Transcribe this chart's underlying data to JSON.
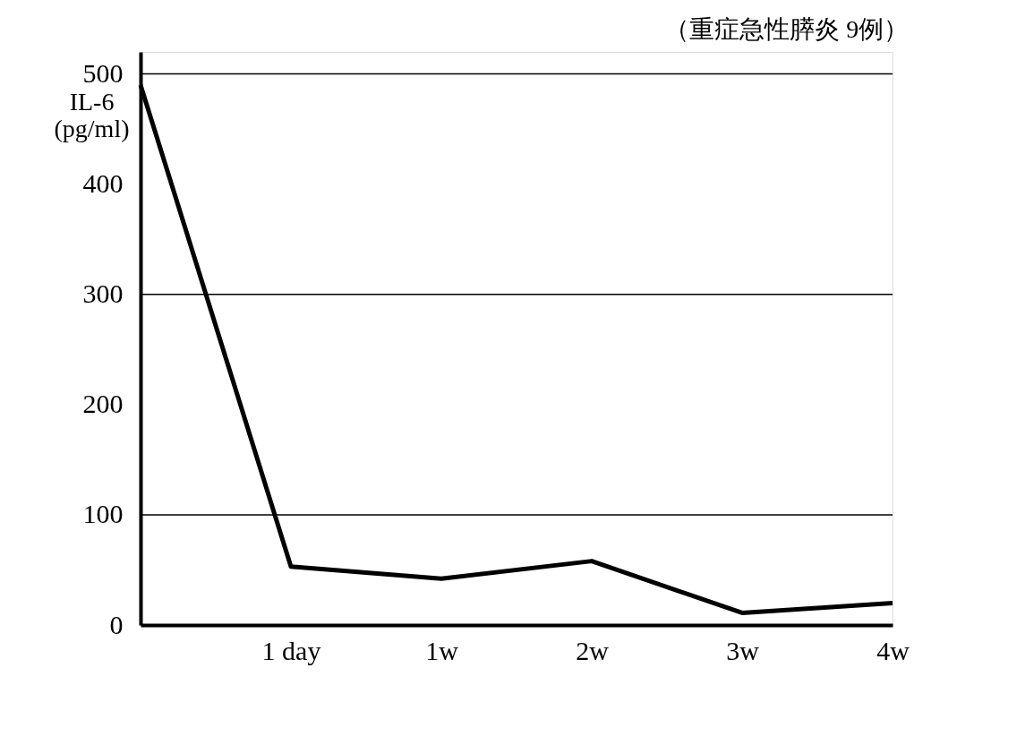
{
  "chart_data": {
    "type": "line",
    "title": "（重症急性膵炎 9例）",
    "ylabel": "IL-6\n(pg/ml)",
    "categories": [
      null,
      "1 day",
      "1w",
      "2w",
      "3w",
      "4w"
    ],
    "series": [
      {
        "color": "#000000",
        "values": [
          490,
          53,
          42,
          58,
          11,
          20
        ]
      }
    ],
    "ylim": [
      0,
      520
    ],
    "yticks": [
      0,
      100,
      200,
      300,
      400,
      500
    ],
    "grid": false,
    "marker": "none",
    "line_style": "solid",
    "ref_lines": [
      {
        "axis": "y",
        "value": 100,
        "color": "#000000"
      },
      {
        "axis": "y",
        "value": 300,
        "color": "#000000"
      },
      {
        "axis": "y",
        "value": 500,
        "color": "#000000"
      }
    ]
  }
}
